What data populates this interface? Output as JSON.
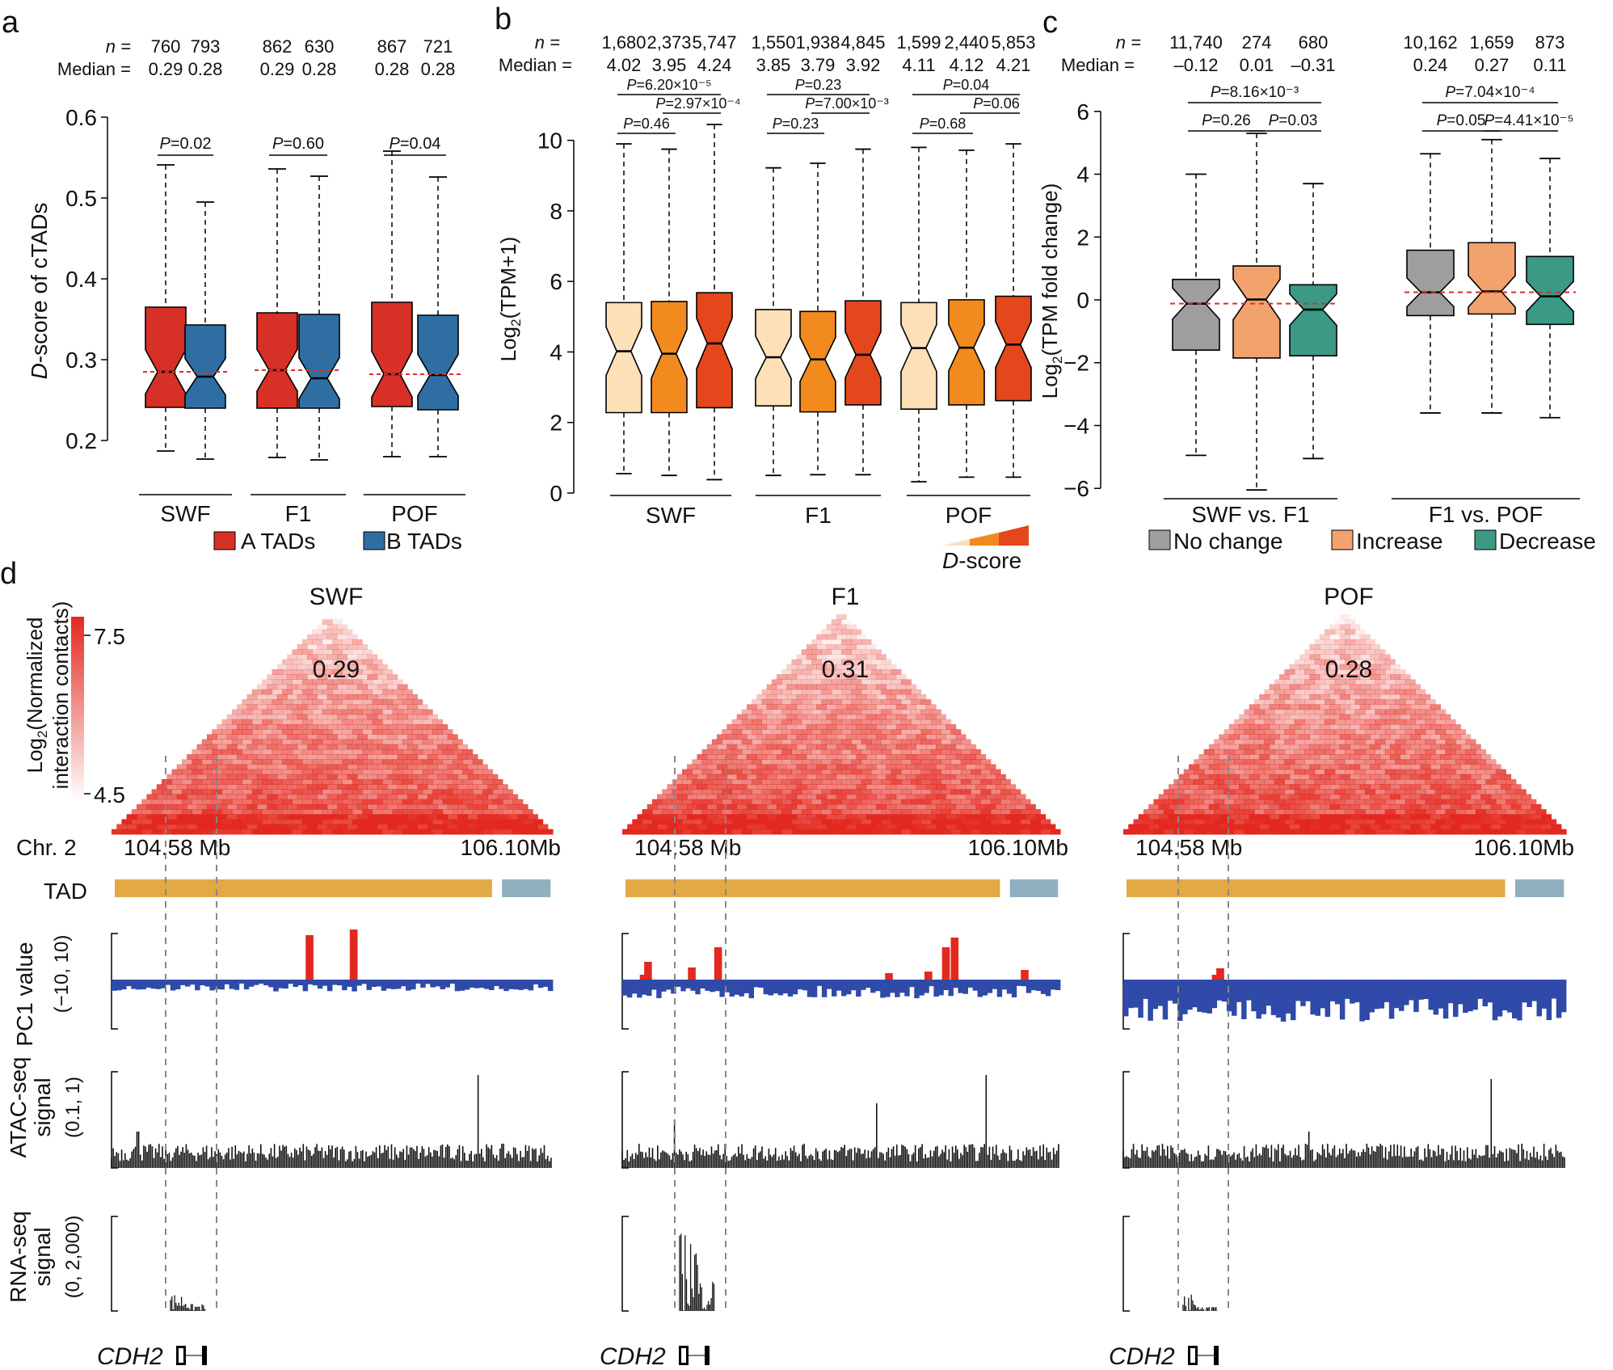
{
  "colors": {
    "a_tads": "#d73027",
    "b_tads": "#2f6ea3",
    "d_low": "#fde0b8",
    "d_mid": "#f28a1e",
    "d_high": "#e4471b",
    "no_change": "#9e9e9e",
    "increase": "#f2a26c",
    "decrease": "#3a9a86",
    "median_line": "#d73027",
    "pc1_pos": "#e3291f",
    "pc1_neg": "#2f4aa8",
    "tad_gold": "#e3a945",
    "tad_blue": "#8fb0bf",
    "gene_red": "#d7301f",
    "heat": "#e3291f"
  },
  "chart_data": [
    {
      "panel": "a",
      "type": "boxplot",
      "n_label": "n =",
      "median_label": "Median =",
      "ylabel": "D-score of cTADs",
      "ylim": [
        0.17,
        0.6
      ],
      "yticks": [
        "0.2",
        "0.3",
        "0.4",
        "0.5",
        "0.6"
      ],
      "groups": [
        {
          "name": "SWF",
          "pval": "=0.02",
          "boxes": [
            {
              "series": 0,
              "n": "760",
              "median_text": "0.29",
              "min": 0.187,
              "q1": 0.241,
              "median": 0.285,
              "q3": 0.365,
              "max": 0.541
            },
            {
              "series": 1,
              "n": "793",
              "median_text": "0.28",
              "min": 0.177,
              "q1": 0.24,
              "median": 0.279,
              "q3": 0.343,
              "max": 0.495
            }
          ]
        },
        {
          "name": "F1",
          "pval": "=0.60",
          "boxes": [
            {
              "series": 0,
              "n": "862",
              "median_text": "0.29",
              "min": 0.179,
              "q1": 0.24,
              "median": 0.287,
              "q3": 0.358,
              "max": 0.536
            },
            {
              "series": 1,
              "n": "630",
              "median_text": "0.28",
              "min": 0.176,
              "q1": 0.24,
              "median": 0.277,
              "q3": 0.356,
              "max": 0.527
            }
          ]
        },
        {
          "name": "POF",
          "pval": "=0.04",
          "boxes": [
            {
              "series": 0,
              "n": "867",
              "median_text": "0.28",
              "min": 0.18,
              "q1": 0.242,
              "median": 0.282,
              "q3": 0.371,
              "max": 0.558
            },
            {
              "series": 1,
              "n": "721",
              "median_text": "0.28",
              "min": 0.18,
              "q1": 0.238,
              "median": 0.281,
              "q3": 0.355,
              "max": 0.526
            }
          ]
        }
      ],
      "legend": [
        "A TADs",
        "B TADs"
      ]
    },
    {
      "panel": "b",
      "type": "boxplot",
      "n_label": "n =",
      "median_label": "Median =",
      "ylabel": "Log2(TPM+1)",
      "ylim": [
        0,
        11
      ],
      "yticks": [
        "0",
        "2",
        "4",
        "6",
        "8",
        "10"
      ],
      "groups": [
        {
          "name": "SWF",
          "boxes": [
            {
              "series": 0,
              "n": "1,680",
              "median_text": "4.02",
              "min": 0.55,
              "q1": 2.28,
              "median": 4.02,
              "q3": 5.4,
              "max": 9.9
            },
            {
              "series": 1,
              "n": "2,373",
              "median_text": "3.95",
              "min": 0.5,
              "q1": 2.28,
              "median": 3.95,
              "q3": 5.43,
              "max": 9.75
            },
            {
              "series": 2,
              "n": "5,747",
              "median_text": "4.24",
              "min": 0.38,
              "q1": 2.42,
              "median": 4.24,
              "q3": 5.68,
              "max": 10.45
            }
          ],
          "pvals": [
            {
              "text": "=0.46",
              "from": 0,
              "to": 1,
              "level": 0
            },
            {
              "text": "=2.97×10⁻⁴",
              "from": 1,
              "to": 2,
              "level": 1
            },
            {
              "text": "=6.20×10⁻⁵",
              "from": 0,
              "to": 2,
              "level": 2
            }
          ]
        },
        {
          "name": "F1",
          "boxes": [
            {
              "series": 0,
              "n": "1,550",
              "median_text": "3.85",
              "min": 0.5,
              "q1": 2.47,
              "median": 3.85,
              "q3": 5.2,
              "max": 9.22
            },
            {
              "series": 1,
              "n": "1,938",
              "median_text": "3.79",
              "min": 0.52,
              "q1": 2.3,
              "median": 3.79,
              "q3": 5.15,
              "max": 9.35
            },
            {
              "series": 2,
              "n": "4,845",
              "median_text": "3.92",
              "min": 0.52,
              "q1": 2.5,
              "median": 3.92,
              "q3": 5.45,
              "max": 9.75
            }
          ],
          "pvals": [
            {
              "text": "=0.23",
              "from": 0,
              "to": 1,
              "level": 0
            },
            {
              "text": "=7.00×10⁻³",
              "from": 1,
              "to": 2,
              "level": 1
            },
            {
              "text": "=0.23",
              "from": 0,
              "to": 2,
              "level": 2
            }
          ]
        },
        {
          "name": "POF",
          "boxes": [
            {
              "series": 0,
              "n": "1,599",
              "median_text": "4.11",
              "min": 0.32,
              "q1": 2.38,
              "median": 4.11,
              "q3": 5.4,
              "max": 9.8
            },
            {
              "series": 1,
              "n": "2,440",
              "median_text": "4.12",
              "min": 0.45,
              "q1": 2.5,
              "median": 4.12,
              "q3": 5.48,
              "max": 9.72
            },
            {
              "series": 2,
              "n": "5,853",
              "median_text": "4.21",
              "min": 0.45,
              "q1": 2.62,
              "median": 4.21,
              "q3": 5.58,
              "max": 9.9
            }
          ],
          "pvals": [
            {
              "text": "=0.68",
              "from": 0,
              "to": 1,
              "level": 0
            },
            {
              "text": "=0.06",
              "from": 1,
              "to": 2,
              "level": 1
            },
            {
              "text": "=0.04",
              "from": 0,
              "to": 2,
              "level": 2
            }
          ]
        }
      ],
      "legend_label": "D-score"
    },
    {
      "panel": "c",
      "type": "boxplot",
      "n_label": "n =",
      "median_label": "Median =",
      "ylabel": "Log2(TPM fold change)",
      "ylim": [
        -6.2,
        6.2
      ],
      "yticks": [
        "−6",
        "−4",
        "−2",
        "0",
        "2",
        "4",
        "6"
      ],
      "groups": [
        {
          "name": "SWF vs. F1",
          "boxes": [
            {
              "series": 0,
              "n": "11,740",
              "median_text": "–0.12",
              "min": -4.95,
              "q1": -1.6,
              "median": -0.12,
              "q3": 0.65,
              "max": 4.0
            },
            {
              "series": 1,
              "n": "274",
              "median_text": "0.01",
              "min": -6.05,
              "q1": -1.85,
              "median": 0.01,
              "q3": 1.08,
              "max": 5.3
            },
            {
              "series": 2,
              "n": "680",
              "median_text": "–0.31",
              "min": -5.05,
              "q1": -1.78,
              "median": -0.31,
              "q3": 0.48,
              "max": 3.7
            }
          ],
          "pvals": [
            {
              "text": "=0.26",
              "from": 0,
              "to": 1,
              "level": 0
            },
            {
              "text": "=0.03",
              "from": 1,
              "to": 2,
              "level": 1
            },
            {
              "text": "=8.16×10⁻³",
              "from": 0,
              "to": 2,
              "level": 2
            }
          ]
        },
        {
          "name": "F1 vs. POF",
          "boxes": [
            {
              "series": 0,
              "n": "10,162",
              "median_text": "0.24",
              "min": -3.6,
              "q1": -0.5,
              "median": 0.24,
              "q3": 1.58,
              "max": 4.65
            },
            {
              "series": 1,
              "n": "1,659",
              "median_text": "0.27",
              "min": -3.6,
              "q1": -0.45,
              "median": 0.27,
              "q3": 1.82,
              "max": 5.1
            },
            {
              "series": 2,
              "n": "873",
              "median_text": "0.11",
              "min": -3.75,
              "q1": -0.78,
              "median": 0.11,
              "q3": 1.38,
              "max": 4.5
            }
          ],
          "pvals": [
            {
              "text": "=0.05",
              "from": 0,
              "to": 1,
              "level": 0
            },
            {
              "text": "=4.41×10⁻⁵",
              "from": 1,
              "to": 2,
              "level": 1
            },
            {
              "text": "=7.04×10⁻⁴",
              "from": 0,
              "to": 2,
              "level": 2
            }
          ]
        }
      ],
      "legend": [
        "No change",
        "Increase",
        "Decrease"
      ]
    }
  ],
  "figure": {
    "panel_letters": [
      "a",
      "b",
      "c",
      "d"
    ],
    "p_letter": "P"
  },
  "panel_d": {
    "colorbar": {
      "max": "7.5",
      "min": "4.5",
      "label": "Log2(Normalized interaction contacts)"
    },
    "chr_label": "Chr. 2",
    "track_labels": {
      "tad": "TAD",
      "pc1": "PC1 value",
      "pc1_range": "(−10, 10)",
      "atac": "ATAC-seq signal",
      "atac_range": "(0.1, 1)",
      "rna": "RNA-seq signal",
      "rna_range": "(0, 2,000)"
    },
    "gene": "CDH2",
    "samples": [
      {
        "name": "SWF",
        "dscore": "0.29",
        "coord_left": "104.58 Mb",
        "coord_right": "106.10Mb",
        "pc1": [
          -3,
          -3,
          -3,
          -3,
          -3,
          -3,
          -3,
          -3,
          -3,
          -3,
          -3,
          -3,
          -3,
          -3,
          -3,
          -3,
          -3,
          -3,
          -3,
          -3,
          -3,
          -3,
          -3,
          -3,
          -3,
          -3,
          -3,
          -3,
          -3,
          -3,
          -3,
          -3,
          -3,
          -3,
          -3,
          -3,
          -3,
          -3,
          -3,
          -3,
          -3,
          -3,
          -3,
          -3,
          -3,
          -3,
          -3,
          -3,
          -3,
          -3,
          -3,
          -3,
          -3,
          -3,
          -3,
          -3,
          -3,
          -3,
          -3,
          -3,
          -3,
          -3,
          -3,
          -3,
          -3,
          -3,
          -3,
          -3,
          -3,
          -3,
          -3,
          -3,
          -3,
          -3,
          -3,
          -3,
          -3,
          -3,
          -3,
          -3,
          -3,
          -3,
          -3,
          -3,
          -3,
          -3,
          -3,
          -3,
          -3,
          -3,
          -3,
          -3,
          -3,
          -3,
          -3,
          -3,
          -3,
          -3,
          -3,
          -3,
          -3,
          -3,
          -3,
          -3,
          -3,
          -3,
          -3,
          -3,
          -3,
          -3,
          -3,
          -3,
          -3,
          -3,
          -3,
          -3,
          -3,
          -3,
          -3,
          -3,
          -3,
          -3,
          -3,
          -3,
          -3,
          -3,
          -3,
          -3,
          -3,
          -3,
          -3,
          -3,
          -3,
          -3,
          -3,
          -3,
          -3,
          -3,
          -3,
          -3,
          -3,
          -3,
          -3,
          -3,
          -3,
          -3,
          -3,
          -3,
          -3,
          -3,
          -3,
          -3,
          -3,
          -3,
          -3,
          -3,
          -3,
          -3,
          -3,
          -3,
          -3,
          -3,
          -3,
          -3,
          -3,
          -3,
          -3,
          -3,
          -3,
          -3,
          -3,
          -3,
          -3,
          -3,
          -3,
          -3,
          -3,
          -3,
          -3,
          -3,
          -3,
          -3,
          -3,
          -3,
          -3,
          -3,
          -3,
          -3,
          -3,
          -3,
          -3,
          -3,
          -3,
          -3,
          -3,
          -3,
          -3,
          -3,
          -3,
          -3
        ]
      },
      {
        "name": "F1",
        "dscore": "0.31",
        "coord_left": "104.58 Mb",
        "coord_right": "106.10Mb"
      },
      {
        "name": "POF",
        "dscore": "0.28",
        "coord_left": "104.58 Mb",
        "coord_right": "106.10Mb"
      }
    ]
  }
}
